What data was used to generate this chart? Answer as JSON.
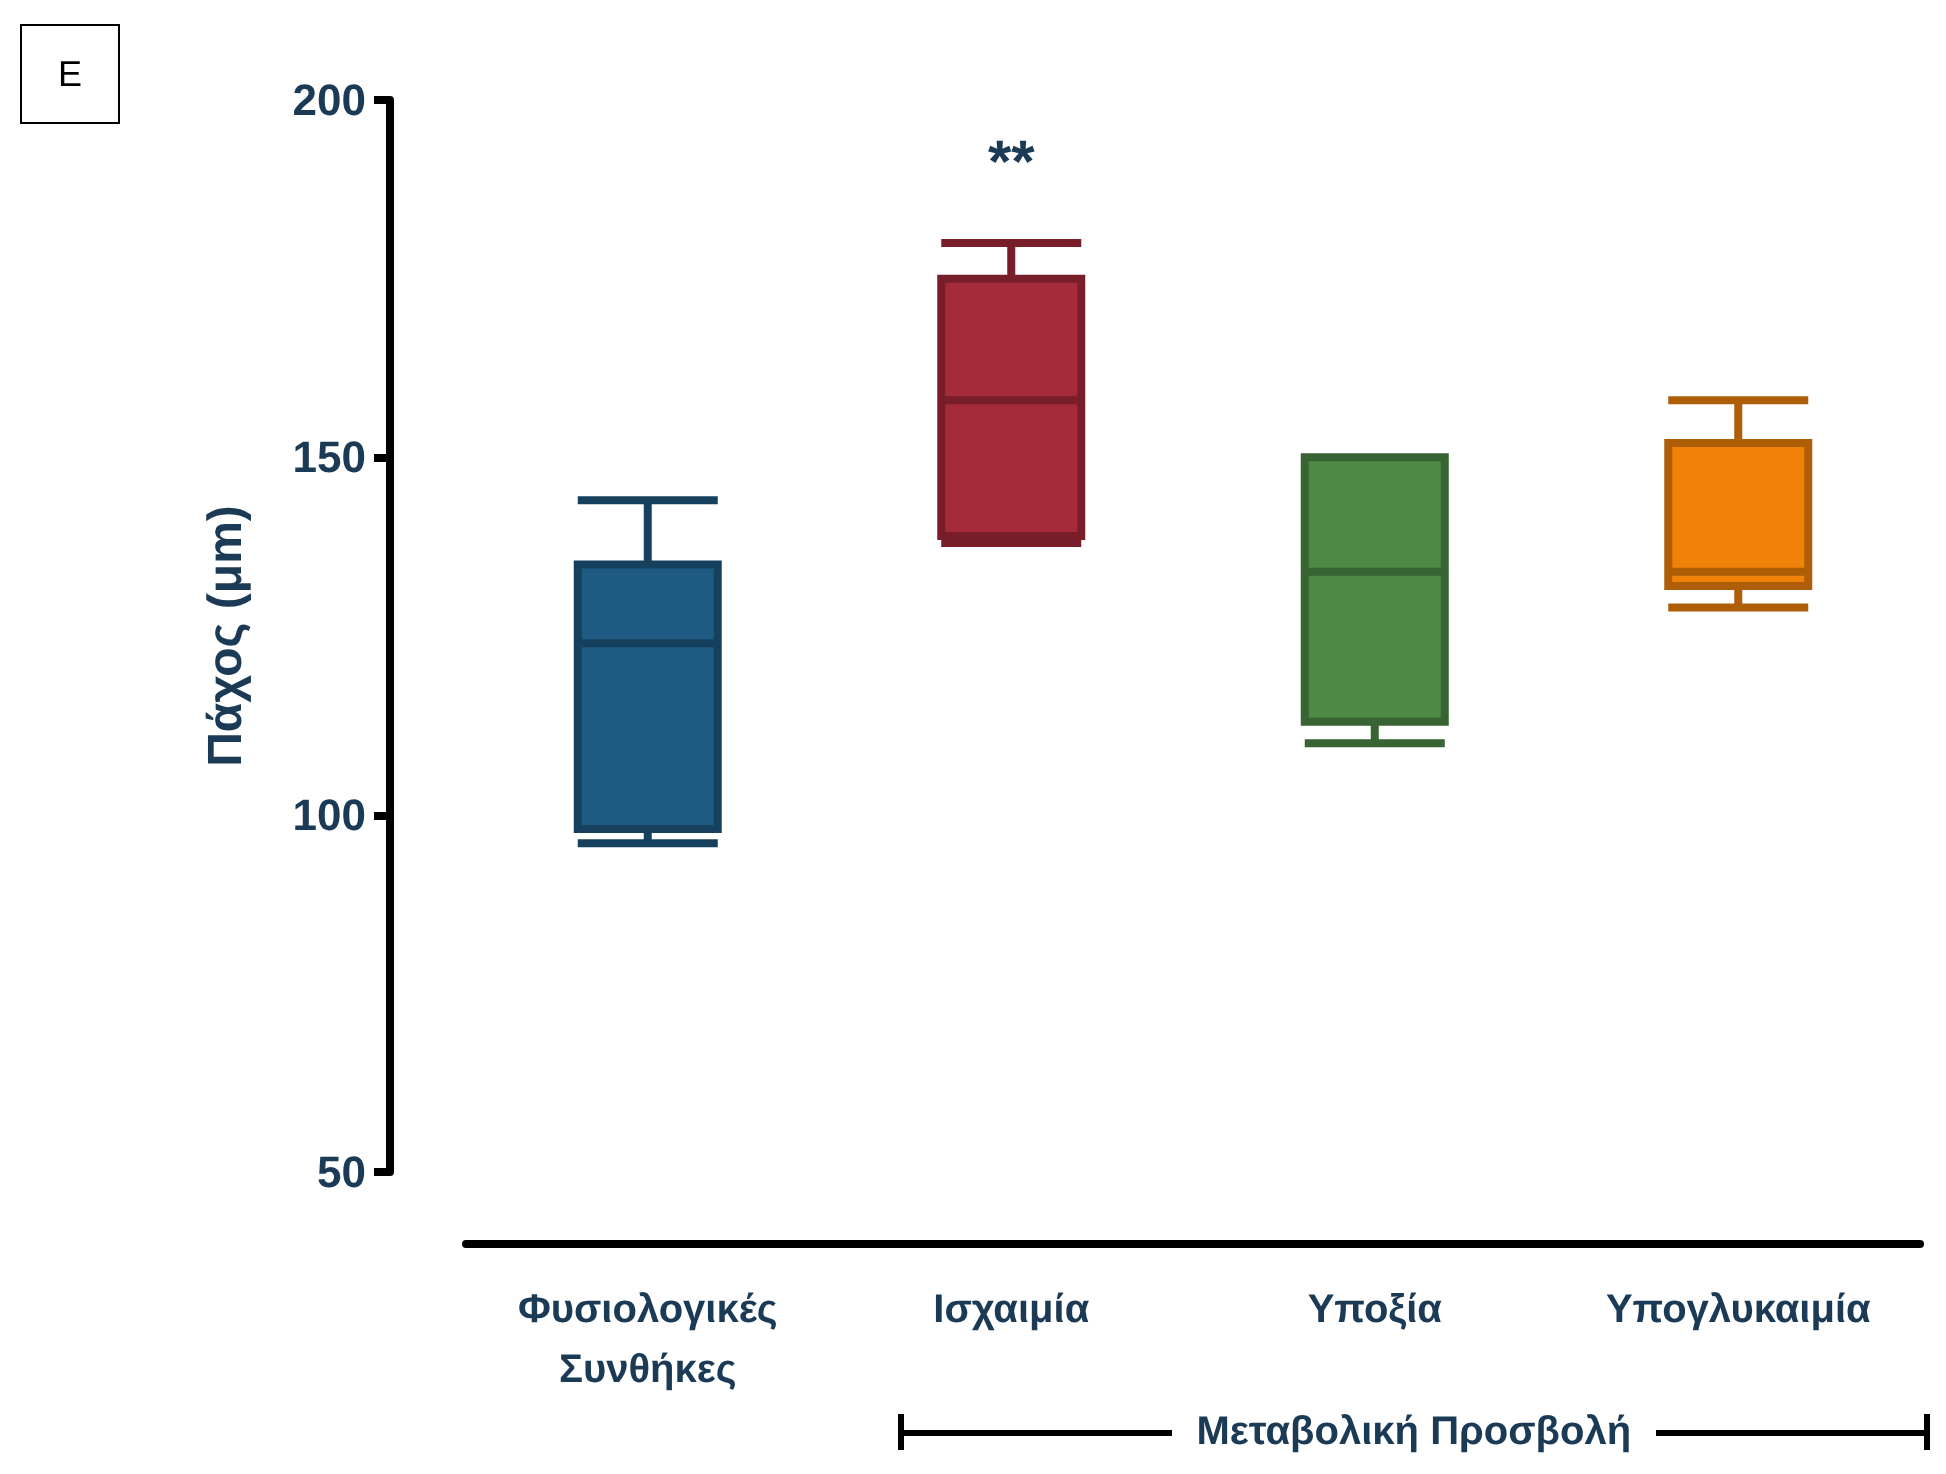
{
  "chart_data": {
    "type": "box",
    "ylabel": "Πάχος (μm)",
    "categories": [
      "Φυσιολογικές Συνθήκες",
      "Ισχαιμία",
      "Υποξία",
      "Υπογλυκαιμία"
    ],
    "boxes": [
      {
        "low": 96,
        "q1": 98,
        "median": 124,
        "q3": 135,
        "high": 144
      },
      {
        "low": 138,
        "q1": 139,
        "median": 158,
        "q3": 175,
        "high": 180
      },
      {
        "low": 110,
        "q1": 113,
        "median": 134,
        "q3": 150,
        "high": 150
      },
      {
        "low": 129,
        "q1": 132,
        "median": 134,
        "q3": 152,
        "high": 158
      }
    ],
    "colors": [
      "#1f5a82",
      "#a52a3a",
      "#4e8a45",
      "#f0820a"
    ],
    "ylim": [
      50,
      200
    ],
    "yticks": [
      50,
      100,
      150,
      200
    ],
    "annotations": [
      "E",
      "**",
      "Μεταβολική Προσβολή"
    ]
  }
}
